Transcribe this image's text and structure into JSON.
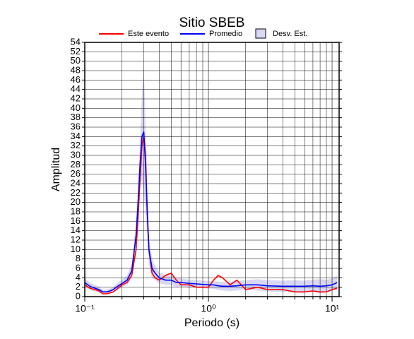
{
  "chart_data": {
    "type": "line",
    "title": "Sitio SBEB",
    "x_label": "Periodo (s)",
    "y_label": "Amplitud",
    "log_x": true,
    "grid": true,
    "x": [
      0.1,
      0.11,
      0.12,
      0.13,
      0.14,
      0.15,
      0.16,
      0.17,
      0.18,
      0.2,
      0.22,
      0.24,
      0.26,
      0.27,
      0.28,
      0.29,
      0.3,
      0.31,
      0.32,
      0.33,
      0.35,
      0.37,
      0.4,
      0.45,
      0.5,
      0.55,
      0.6,
      0.7,
      0.8,
      1.0,
      1.1,
      1.2,
      1.3,
      1.5,
      1.7,
      2,
      2.5,
      3,
      4,
      5,
      6,
      7,
      8,
      9,
      10,
      11
    ],
    "series": [
      {
        "name": "Este evento",
        "color": "#ff0000",
        "values": [
          2.5,
          1.8,
          1.5,
          1.2,
          0.6,
          0.6,
          0.8,
          1.0,
          1.5,
          2.5,
          3,
          4.5,
          10,
          17,
          25,
          32,
          34,
          30,
          18,
          10,
          5,
          4,
          3.5,
          4.5,
          5,
          3.5,
          2.5,
          2.5,
          2,
          2,
          3.5,
          4.5,
          4,
          2.5,
          3.5,
          1.5,
          2,
          1.5,
          1.5,
          1,
          1,
          1.2,
          1,
          1,
          1.5,
          1.8
        ]
      },
      {
        "name": "Promedio",
        "color": "#0000ff",
        "values": [
          3,
          2.2,
          1.8,
          1.5,
          1,
          1,
          1.2,
          1.5,
          2,
          2.8,
          3.5,
          5.5,
          13,
          20,
          28,
          34,
          35,
          28,
          18,
          10,
          6,
          5,
          4,
          3.5,
          3.5,
          3,
          3,
          2.8,
          2.7,
          2.5,
          2.5,
          2.3,
          2.2,
          2.2,
          2.3,
          2.5,
          2.5,
          2.3,
          2.2,
          2.2,
          2.2,
          2.3,
          2.2,
          2.3,
          2.5,
          3
        ]
      },
      {
        "name": "Desv. Est.",
        "color": "#d8d8f4",
        "values": [
          0.8,
          0.8,
          0.7,
          0.6,
          0.5,
          0.5,
          0.5,
          0.6,
          0.7,
          0.8,
          1,
          1.5,
          3,
          4,
          5,
          9,
          14,
          9,
          5,
          3,
          2,
          1.5,
          1.2,
          1,
          1,
          1,
          0.8,
          0.8,
          0.8,
          0.8,
          0.8,
          0.9,
          0.9,
          1,
          1,
          1,
          1.2,
          1.2,
          1.2,
          1.3,
          1.2,
          1.3,
          1.5,
          1.3,
          1.3,
          1.5
        ]
      }
    ],
    "xlim": [
      0.1,
      11.4
    ],
    "xticks": [
      {
        "value": 0.1,
        "label": "10⁻¹"
      },
      {
        "value": 1,
        "label": "10⁰"
      },
      {
        "value": 10,
        "label": "10¹"
      }
    ],
    "xminor": [
      0.2,
      0.3,
      0.4,
      0.5,
      0.6,
      0.7,
      0.8,
      0.9,
      2,
      3,
      4,
      5,
      6,
      7,
      8,
      9
    ],
    "ylim": [
      0,
      54
    ],
    "yticks": [
      0,
      2,
      4,
      6,
      8,
      10,
      12,
      14,
      16,
      18,
      20,
      22,
      24,
      26,
      28,
      30,
      32,
      34,
      36,
      38,
      40,
      42,
      44,
      46,
      48,
      50,
      52,
      54
    ]
  }
}
